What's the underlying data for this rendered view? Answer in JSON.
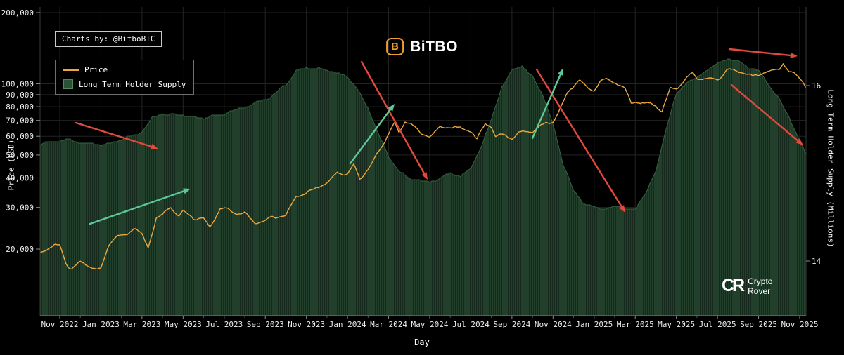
{
  "branding": {
    "charts_by": "Charts by: @BitboBTC",
    "logo_icon_letter": "B",
    "logo_text": "BiTBO",
    "watermark_mark": "CR",
    "watermark_line1": "Crypto",
    "watermark_line2": "Rover"
  },
  "legend": {
    "items": [
      {
        "label": "Price",
        "color": "#eca83f",
        "type": "line"
      },
      {
        "label": "Long Term Holder Supply",
        "color": "#2b5136",
        "type": "area"
      }
    ]
  },
  "colors": {
    "background": "#000000",
    "grid": "#232323",
    "axis_spine": "#8a8a8a",
    "side_spine": "#3a3a3a",
    "price_line": "#eca83f",
    "supply_fill": "#213f2b",
    "supply_stripe": "#152a1c",
    "supply_edge": "#3a6b47",
    "arrow_red": "#e2493d",
    "arrow_green": "#5ec998"
  },
  "chart_data": {
    "type": "line",
    "title": "",
    "xlabel": "Day",
    "ylabel_left": "Price (USD)",
    "ylabel_right": "Long Term Holder Supply (Millions)",
    "x_tick_months": [
      0,
      2,
      4,
      6,
      8,
      10,
      12,
      14,
      16,
      18,
      20,
      22,
      24,
      26,
      28,
      30,
      32,
      34,
      36
    ],
    "x_tick_labels": [
      "Nov 2022",
      "Jan 2023",
      "Mar 2023",
      "May 2023",
      "Jul 2023",
      "Sep 2023",
      "Nov 2023",
      "Jan 2024",
      "Mar 2024",
      "May 2024",
      "Jul 2024",
      "Sep 2024",
      "Nov 2024",
      "Jan 2025",
      "Mar 2025",
      "May 2025",
      "Jul 2025",
      "Sep 2025",
      "Nov 2025"
    ],
    "left_axis": {
      "scale": "log",
      "tick_values": [
        200000,
        100000,
        90000,
        80000,
        70000,
        60000,
        50000,
        40000,
        30000,
        20000
      ],
      "tick_labels": [
        "200,000",
        "100,000",
        "90,000",
        "80,000",
        "70,000",
        "60,000",
        "50,000",
        "40,000",
        "30,000",
        "20,000"
      ]
    },
    "right_axis": {
      "scale": "linear",
      "tick_values": [
        16,
        14
      ],
      "tick_labels": [
        "16",
        "14"
      ]
    },
    "series": [
      {
        "name": "Price",
        "type": "line",
        "axis": "left",
        "color": "#eca83f",
        "x": [
          -1.0,
          -0.3,
          0,
          0.3,
          0.5,
          0.8,
          1.0,
          1.5,
          2.0,
          2.4,
          2.8,
          3.2,
          3.6,
          4.0,
          4.3,
          4.7,
          5.0,
          5.4,
          5.8,
          6.0,
          6.5,
          7.0,
          7.3,
          7.8,
          8.0,
          8.5,
          9.0,
          9.5,
          10.0,
          10.5,
          11.0,
          11.5,
          12.0,
          12.5,
          13.0,
          13.5,
          14.0,
          14.3,
          14.6,
          15.0,
          15.5,
          16.0,
          16.3,
          16.5,
          16.8,
          17.0,
          17.5,
          18.0,
          18.5,
          19.0,
          19.5,
          20.0,
          20.3,
          20.7,
          21.0,
          21.2,
          21.5,
          22.0,
          22.5,
          23.0,
          23.5,
          24.0,
          24.3,
          24.7,
          25.0,
          25.3,
          25.7,
          26.0,
          26.3,
          26.6,
          27.0,
          27.5,
          27.8,
          28.0,
          28.5,
          29.0,
          29.3,
          29.7,
          30.0,
          30.5,
          30.8,
          31.0,
          31.5,
          32.0,
          32.5,
          33.0,
          33.3,
          33.7,
          34.0,
          34.5,
          35.0,
          35.2,
          35.5,
          35.8,
          36.0,
          36.3,
          36.5
        ],
        "values": [
          19500,
          20600,
          20400,
          17100,
          16300,
          16600,
          17200,
          16800,
          16600,
          21000,
          23100,
          23000,
          24600,
          23200,
          20400,
          27600,
          28400,
          30200,
          27800,
          29300,
          26900,
          27100,
          25400,
          30600,
          30400,
          29300,
          29200,
          26100,
          25900,
          26600,
          27000,
          33600,
          34500,
          37200,
          38700,
          43000,
          42300,
          46300,
          40100,
          43100,
          51000,
          62000,
          68500,
          63000,
          70500,
          69600,
          64000,
          60600,
          67200,
          67500,
          64900,
          62700,
          57200,
          67000,
          64600,
          58400,
          60600,
          59100,
          63300,
          63300,
          67000,
          69500,
          76000,
          91000,
          96400,
          101200,
          95800,
          94400,
          102100,
          104800,
          102400,
          96500,
          84300,
          86000,
          83700,
          82500,
          76300,
          94200,
          94200,
          103700,
          109000,
          104600,
          105600,
          107200,
          118000,
          115800,
          113000,
          108200,
          108200,
          112500,
          114000,
          122000,
          111000,
          107000,
          103000,
          96500,
          101000
        ]
      },
      {
        "name": "Long Term Holder Supply",
        "type": "area",
        "axis": "right",
        "color": "#213f2b",
        "edge": "#3a6b47",
        "x": [
          -1.0,
          0,
          0.5,
          1,
          2,
          3,
          4,
          4.5,
          5,
          6,
          7,
          8,
          9,
          10,
          11,
          11.5,
          12,
          13,
          14,
          14.5,
          15,
          15.5,
          16,
          16.5,
          17,
          18,
          18.5,
          19,
          19.5,
          20,
          20.5,
          21,
          21.5,
          22,
          22.5,
          23,
          23.5,
          24,
          24.5,
          25,
          25.5,
          26,
          26.5,
          27,
          27.5,
          28,
          28.5,
          29,
          29.5,
          30,
          30.5,
          31,
          31.5,
          32,
          32.5,
          33,
          33.5,
          34,
          34.5,
          35,
          35.5,
          36,
          36.5
        ],
        "values": [
          15.3,
          15.36,
          15.38,
          15.35,
          15.32,
          15.36,
          15.44,
          15.62,
          15.66,
          15.68,
          15.64,
          15.68,
          15.74,
          15.84,
          16.02,
          16.16,
          16.22,
          16.18,
          16.1,
          15.95,
          15.75,
          15.45,
          15.2,
          15.05,
          14.95,
          14.9,
          14.93,
          15.0,
          14.96,
          15.05,
          15.3,
          15.6,
          16.0,
          16.18,
          16.22,
          16.1,
          15.9,
          15.55,
          15.1,
          14.8,
          14.66,
          14.62,
          14.6,
          14.63,
          14.6,
          14.58,
          14.76,
          15.0,
          15.5,
          15.9,
          16.05,
          16.1,
          16.2,
          16.26,
          16.3,
          16.28,
          16.2,
          16.15,
          16.0,
          15.85,
          15.62,
          15.38,
          15.12
        ]
      }
    ],
    "annotations": [
      {
        "name": "red-arrow-top-right",
        "type": "arrow",
        "color": "#e2493d",
        "from": [
          1037,
          70
        ],
        "to": [
          1134,
          80
        ]
      },
      {
        "name": "red-arrow-right-down",
        "type": "arrow",
        "color": "#e2493d",
        "from": [
          1040,
          121
        ],
        "to": [
          1142,
          207
        ]
      },
      {
        "name": "red-arrow-late-2024",
        "type": "arrow",
        "color": "#e2493d",
        "from": [
          763,
          99
        ],
        "to": [
          889,
          303
        ]
      },
      {
        "name": "red-arrow-mid-2024",
        "type": "arrow",
        "color": "#e2493d",
        "from": [
          514,
          88
        ],
        "to": [
          608,
          256
        ]
      },
      {
        "name": "red-arrow-early-2023",
        "type": "arrow",
        "color": "#e2493d",
        "from": [
          108,
          175
        ],
        "to": [
          225,
          212
        ]
      },
      {
        "name": "green-arrow-2023",
        "type": "arrow",
        "color": "#5ec998",
        "from": [
          128,
          319
        ],
        "to": [
          271,
          269
        ]
      },
      {
        "name": "green-arrow-early-2024",
        "type": "arrow",
        "color": "#5ec998",
        "from": [
          498,
          233
        ],
        "to": [
          561,
          148
        ]
      },
      {
        "name": "green-arrow-late-2024",
        "type": "arrow",
        "color": "#5ec998",
        "from": [
          757,
          197
        ],
        "to": [
          801,
          97
        ]
      }
    ]
  }
}
